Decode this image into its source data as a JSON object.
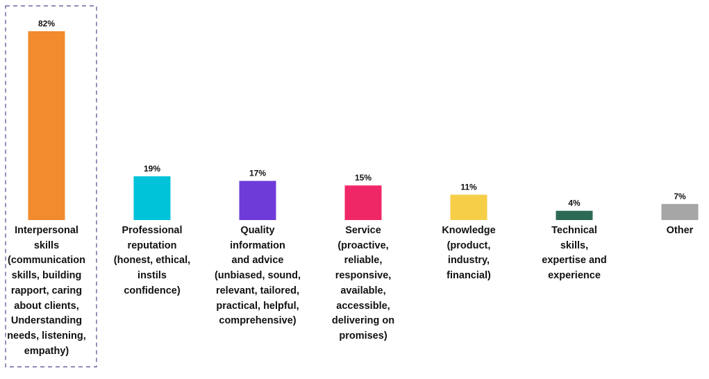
{
  "chart_data": {
    "type": "bar",
    "categories": [
      "Interpersonal\nskills\n(communication\nskills, building\nrapport, caring\nabout clients,\nUnderstanding\nneeds, listening,\nempathy)",
      "Professional\nreputation\n(honest, ethical,\ninstils\nconfidence)",
      "Quality\ninformation\nand advice\n(unbiased, sound,\nrelevant, tailored,\npractical, helpful,\ncomprehensive)",
      "Service\n(proactive,\nreliable,\nresponsive,\navailable,\naccessible,\ndelivering on\npromises)",
      "Knowledge\n(product,\nindustry,\nfinancial)",
      "Technical\nskills,\nexpertise and\nexperience",
      "Other"
    ],
    "values": [
      82,
      19,
      17,
      15,
      11,
      4,
      7
    ],
    "value_labels": [
      "82%",
      "19%",
      "17%",
      "15%",
      "11%",
      "4%",
      "7%"
    ],
    "colors": [
      "#F28A2E",
      "#00C3D9",
      "#6E3BD9",
      "#F02766",
      "#F6CE48",
      "#2C6A55",
      "#A6A6A6"
    ],
    "highlight_index": 0,
    "highlight_color": "#4A4A8A",
    "ylim": [
      0,
      82
    ],
    "grid": false,
    "title": "",
    "xlabel": "",
    "ylabel": ""
  }
}
